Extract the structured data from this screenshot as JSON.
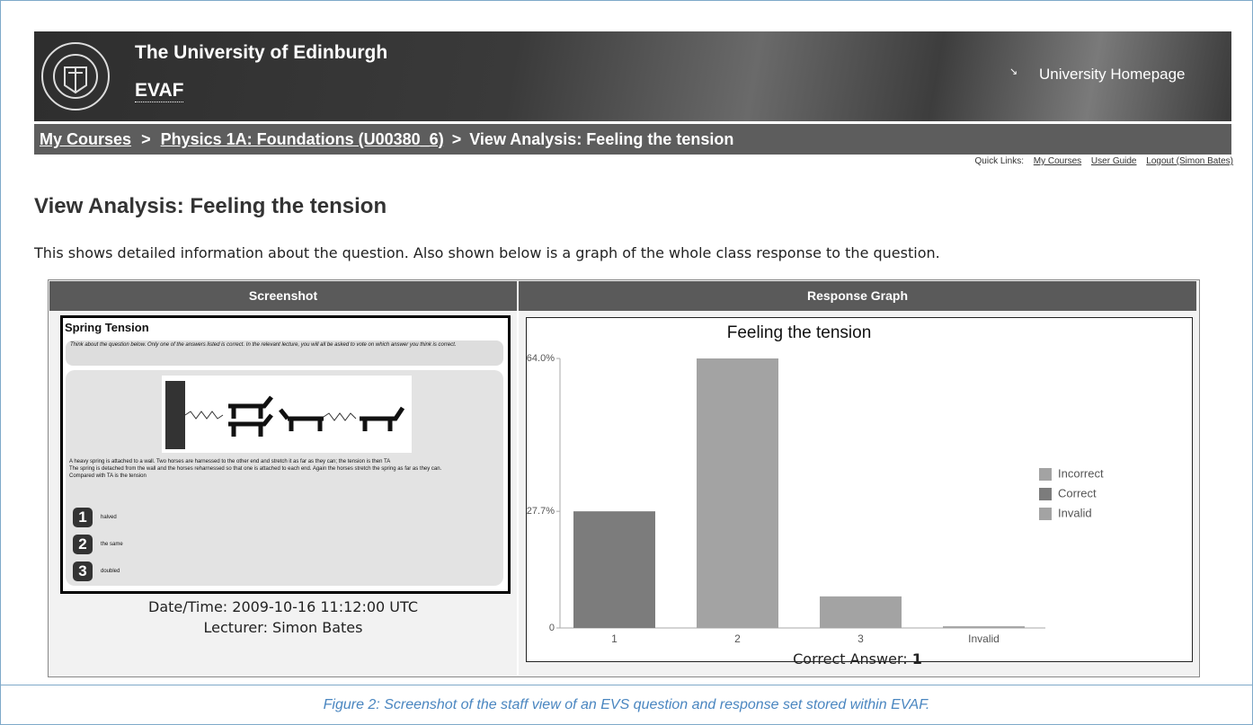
{
  "header": {
    "university": "The University of Edinburgh",
    "app": "EVAF",
    "homepage_link": "University Homepage"
  },
  "breadcrumb": {
    "items": [
      "My Courses",
      "Physics 1A: Foundations (U00380_6)",
      "View Analysis: Feeling the tension"
    ],
    "separator": ">"
  },
  "quick_links": {
    "label": "Quick Links:",
    "links": [
      "My Courses",
      "User Guide",
      "Logout (Simon Bates)"
    ]
  },
  "page": {
    "title": "View Analysis: Feeling the tension",
    "description": "This shows detailed information about the question. Also shown below is a graph of the whole class response to the question."
  },
  "table": {
    "headers": [
      "Screenshot",
      "Response Graph"
    ]
  },
  "screenshot": {
    "title": "Spring Tension",
    "instructions": "Think about the question below. Only one of the answers listed is correct. In the relevant lecture, you will all be asked to vote on which answer you think is correct.",
    "question": [
      "A heavy spring is attached to a wall. Two horses are harnessed to the other end and stretch it as far as they can; the tension is then TA",
      "The spring is detached from the wall and the horses reharnessed so that one is attached to each end. Again the horses stretch the spring as far as they can.",
      "Compared with TA is the tension"
    ],
    "answers": [
      {
        "number": "1",
        "text": "halved"
      },
      {
        "number": "2",
        "text": "the same"
      },
      {
        "number": "3",
        "text": "doubled"
      }
    ]
  },
  "details": {
    "datetime": "Date/Time: 2009-10-16 11:12:00 UTC",
    "lecturer": "Lecturer: Simon Bates",
    "correct_label": "Correct Answer:",
    "correct_value": "1"
  },
  "chart_data": {
    "type": "bar",
    "title": "Feeling the tension",
    "categories": [
      "1",
      "2",
      "3",
      "Invalid"
    ],
    "series": [
      {
        "name": "Incorrect",
        "color": "#a3a3a3",
        "values": [
          null,
          64.0,
          7.5,
          null
        ]
      },
      {
        "name": "Correct",
        "color": "#7c7c7c",
        "values": [
          27.7,
          null,
          null,
          null
        ]
      },
      {
        "name": "Invalid",
        "color": "#a3a3a3",
        "values": [
          null,
          null,
          null,
          0.4
        ]
      }
    ],
    "ylim": [
      0,
      64.0
    ],
    "yticks": [
      0,
      {
        "value": 27.7,
        "label": "27.7%"
      },
      {
        "value": 64.0,
        "label": "64.0%"
      }
    ],
    "grid": false,
    "legend": "right"
  },
  "caption": "Figure 2: Screenshot of the staff view of an EVS question and response set stored within EVAF."
}
